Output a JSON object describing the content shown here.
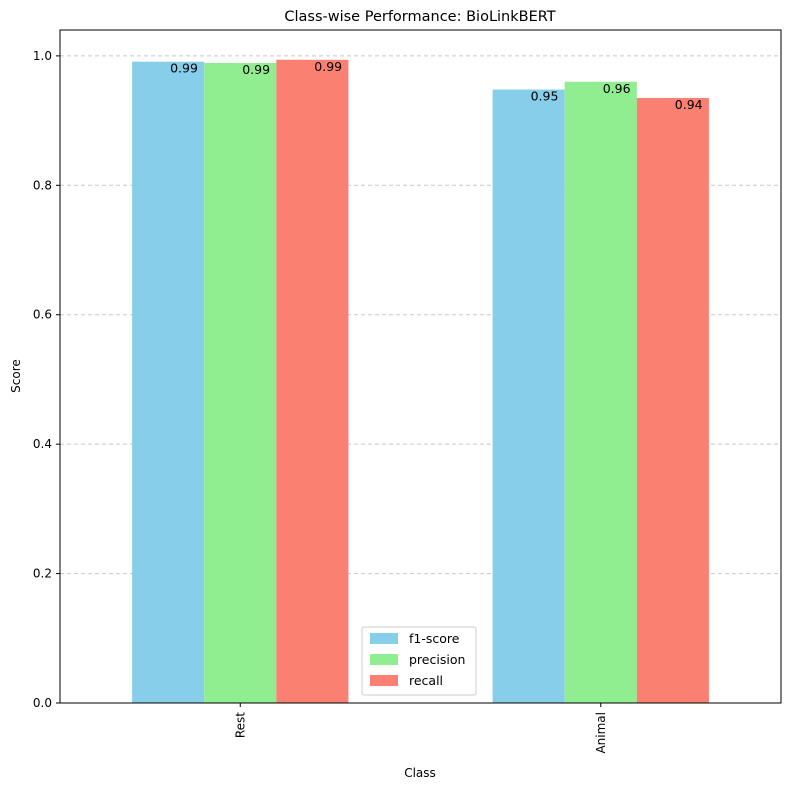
{
  "chart_data": {
    "type": "bar",
    "title": "Class-wise Performance: BioLinkBERT",
    "xlabel": "Class",
    "ylabel": "Score",
    "categories": [
      "Rest",
      "Animal"
    ],
    "series": [
      {
        "name": "f1-score",
        "values": [
          0.991,
          0.948
        ],
        "labels": [
          "0.99",
          "0.95"
        ],
        "color": "#87CEEB"
      },
      {
        "name": "precision",
        "values": [
          0.989,
          0.96
        ],
        "labels": [
          "0.99",
          "0.96"
        ],
        "color": "#90EE90"
      },
      {
        "name": "recall",
        "values": [
          0.994,
          0.935
        ],
        "labels": [
          "0.99",
          "0.94"
        ],
        "color": "#FA8072"
      }
    ],
    "ylim": [
      0,
      1.04
    ],
    "yticks": [
      "0.0",
      "0.2",
      "0.4",
      "0.6",
      "0.8",
      "1.0"
    ],
    "grid": "y-dashed",
    "legend_position": "lower-center"
  }
}
